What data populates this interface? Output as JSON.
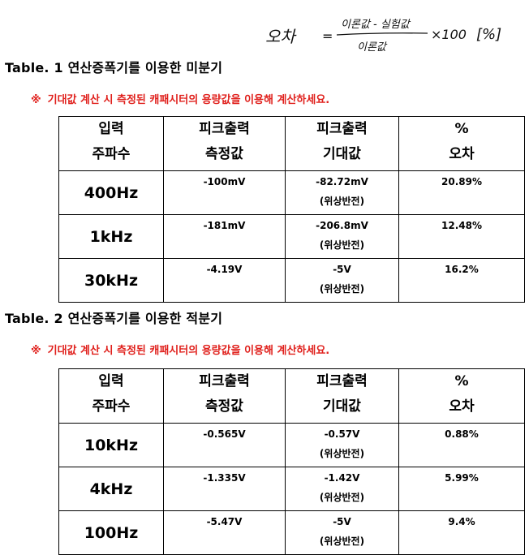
{
  "formula": {
    "left": "오차",
    "equals": "=",
    "numerator": "이론값 - 실험값",
    "denominator": "이론값",
    "multiplier": "×100",
    "unit": "[%]"
  },
  "table1": {
    "title": "Table. 1  연산증폭기를 이용한 미분기",
    "note_mark": "※",
    "note": "기대값 계산 시 측정된 캐패시터의 용량값을 이용해 계산하세요.",
    "headers": [
      {
        "line1": "입력",
        "line2": "주파수"
      },
      {
        "line1": "피크출력",
        "line2": "측정값"
      },
      {
        "line1": "피크출력",
        "line2": "기대값"
      },
      {
        "line1": "%",
        "line2": "오차"
      }
    ],
    "rows": [
      {
        "freq": "400Hz",
        "measured": "-100mV",
        "expected": "-82.72mV",
        "expected_note": "(위상반전)",
        "error": "20.89%"
      },
      {
        "freq": "1kHz",
        "measured": "-181mV",
        "expected": "-206.8mV",
        "expected_note": "(위상반전)",
        "error": "12.48%"
      },
      {
        "freq": "30kHz",
        "measured": "-4.19V",
        "expected": "-5V",
        "expected_note": "(위상반전)",
        "error": "16.2%"
      }
    ]
  },
  "table2": {
    "title": "Table. 2  연산증폭기를 이용한 적분기",
    "note_mark": "※",
    "note": "기대값 계산 시 측정된 캐패시터의 용량값을 이용해 계산하세요.",
    "headers": [
      {
        "line1": "입력",
        "line2": "주파수"
      },
      {
        "line1": "피크출력",
        "line2": "측정값"
      },
      {
        "line1": "피크출력",
        "line2": "기대값"
      },
      {
        "line1": "%",
        "line2": "오차"
      }
    ],
    "rows": [
      {
        "freq": "10kHz",
        "measured": "-0.565V",
        "expected": "-0.57V",
        "expected_note": "(위상반전)",
        "error": "0.88%"
      },
      {
        "freq": "4kHz",
        "measured": "-1.335V",
        "expected": "-1.42V",
        "expected_note": "(위상반전)",
        "error": "5.99%"
      },
      {
        "freq": "100Hz",
        "measured": "-5.47V",
        "expected": "-5V",
        "expected_note": "(위상반전)",
        "error": "9.4%"
      }
    ]
  }
}
